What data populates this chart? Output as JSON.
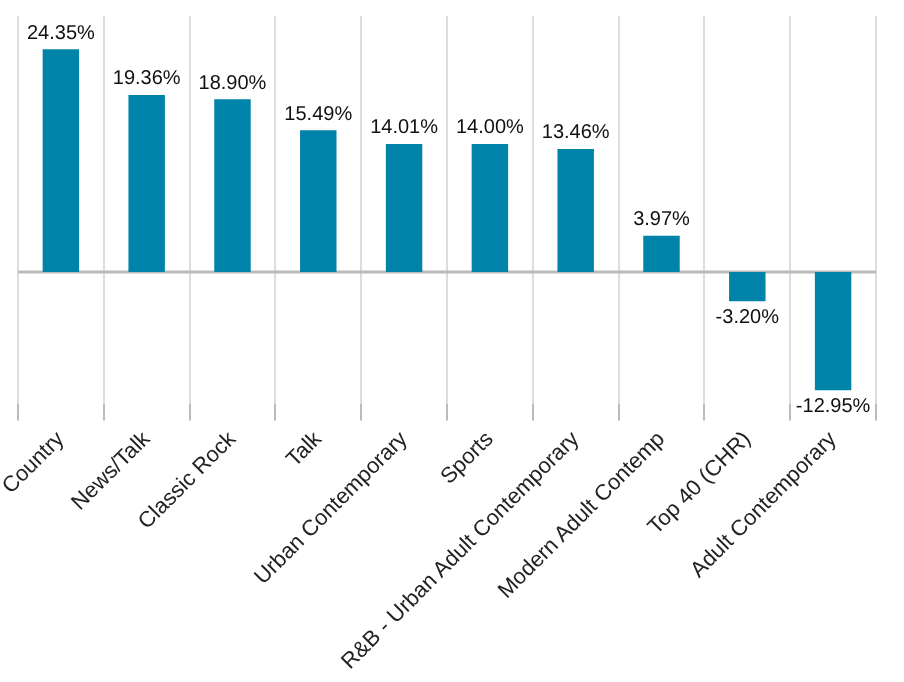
{
  "chart_data": {
    "type": "bar",
    "categories": [
      "Country",
      "News/Talk",
      "Classic Rock",
      "Talk",
      "Urban Contemporary",
      "Sports",
      "R&B - Urban Adult Contemporary",
      "Modern Adult Contemp",
      "Top 40 (CHR)",
      "Adult Contemporary"
    ],
    "values": [
      24.35,
      19.36,
      18.9,
      15.49,
      14.01,
      14.0,
      13.46,
      3.97,
      -3.2,
      -12.95
    ],
    "value_labels": [
      "24.35%",
      "19.36%",
      "18.90%",
      "15.49%",
      "14.01%",
      "14.00%",
      "13.46%",
      "3.97%",
      "-3.20%",
      "-12.95%"
    ],
    "color": "#0083a9",
    "ylim": [
      -14.5,
      28
    ],
    "grid": "x",
    "tick_labels": "x",
    "legend": false
  }
}
